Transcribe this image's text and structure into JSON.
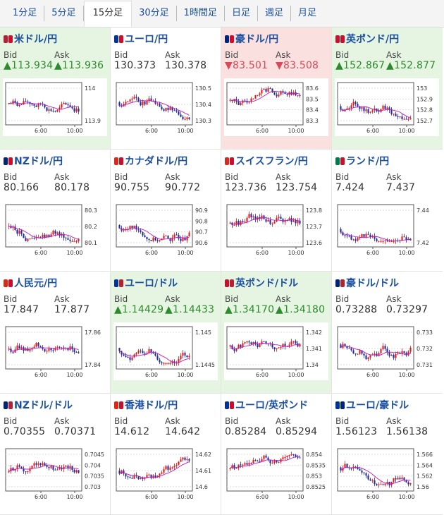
{
  "tabs": [
    {
      "label": "1分足",
      "active": false
    },
    {
      "label": "5分足",
      "active": false
    },
    {
      "label": "15分足",
      "active": true
    },
    {
      "label": "30分足",
      "active": false
    },
    {
      "label": "1時間足",
      "active": false
    },
    {
      "label": "日足",
      "active": false
    },
    {
      "label": "週足",
      "active": false
    },
    {
      "label": "月足",
      "active": false
    }
  ],
  "bid_label": "Bid",
  "ask_label": "Ask",
  "colors": {
    "up_bg": "#e6f5e2",
    "down_bg": "#fbe0e0",
    "candle_up": "#e01818",
    "candle_down": "#1f2aa0",
    "ma": "#c018c0",
    "up_text": "#2d8a2d",
    "down_text": "#d84a5a",
    "link": "#1a4fa0"
  },
  "x_ticks": [
    "6:00",
    "10:00"
  ],
  "pairs": [
    {
      "name": "米ドル/円",
      "flags": [
        "#b22234",
        "#c8102e"
      ],
      "state": "up",
      "bid": "▲113.934",
      "ask": "▲113.936",
      "y_ticks": [
        "114",
        "113.9"
      ]
    },
    {
      "name": "ユーロ/円",
      "flags": [
        "#003399",
        "#c8102e"
      ],
      "state": "none",
      "bid": "130.373",
      "ask": "130.378",
      "y_ticks": [
        "130.5",
        "130.4",
        "130.3"
      ]
    },
    {
      "name": "豪ドル/円",
      "flags": [
        "#00247d",
        "#c8102e"
      ],
      "state": "down",
      "bid": "▼83.501",
      "ask": "▼83.508",
      "y_ticks": [
        "83.6",
        "83.5",
        "83.4",
        "83.3"
      ]
    },
    {
      "name": "英ポンド/円",
      "flags": [
        "#c8102e",
        "#c8102e"
      ],
      "state": "up",
      "bid": "▲152.867",
      "ask": "▲152.877",
      "y_ticks": [
        "153",
        "152.9",
        "152.8",
        "152.7"
      ]
    },
    {
      "name": "NZドル/円",
      "flags": [
        "#00247d",
        "#c8102e"
      ],
      "state": "none",
      "bid": "80.166",
      "ask": "80.178",
      "y_ticks": [
        "80.3",
        "80.2",
        "80.1"
      ]
    },
    {
      "name": "カナダドル/円",
      "flags": [
        "#d52b1e",
        "#c8102e"
      ],
      "state": "none",
      "bid": "90.755",
      "ask": "90.772",
      "y_ticks": [
        "90.9",
        "90.8",
        "90.7",
        "90.6"
      ]
    },
    {
      "name": "スイスフラン/円",
      "flags": [
        "#d52b1e",
        "#c8102e"
      ],
      "state": "none",
      "bid": "123.736",
      "ask": "123.754",
      "y_ticks": [
        "123.8",
        "123.7",
        "123.6"
      ]
    },
    {
      "name": "ランド/円",
      "flags": [
        "#007a4d",
        "#c8102e"
      ],
      "state": "none",
      "bid": "7.424",
      "ask": "7.437",
      "y_ticks": [
        "7.44",
        "7.42"
      ]
    },
    {
      "name": "人民元/円",
      "flags": [
        "#de2910",
        "#c8102e"
      ],
      "state": "none",
      "bid": "17.847",
      "ask": "17.877",
      "y_ticks": [
        "17.86",
        "17.84"
      ]
    },
    {
      "name": "ユーロ/ドル",
      "flags": [
        "#003399",
        "#b22234"
      ],
      "state": "up",
      "bid": "▲1.14429",
      "ask": "▲1.14433",
      "y_ticks": [
        "1.145",
        "1.1445"
      ]
    },
    {
      "name": "英ポンド/ドル",
      "flags": [
        "#c8102e",
        "#b22234"
      ],
      "state": "up",
      "bid": "▲1.34170",
      "ask": "▲1.34180",
      "y_ticks": [
        "1.342",
        "1.341",
        "1.34"
      ]
    },
    {
      "name": "豪ドル/ドル",
      "flags": [
        "#00247d",
        "#b22234"
      ],
      "state": "none",
      "bid": "0.73288",
      "ask": "0.73297",
      "y_ticks": [
        "0.733",
        "0.732",
        "0.731"
      ]
    },
    {
      "name": "NZドル/ドル",
      "flags": [
        "#00247d",
        "#b22234"
      ],
      "state": "none",
      "bid": "0.70355",
      "ask": "0.70371",
      "y_ticks": [
        "0.7045",
        "0.704",
        "0.7035",
        "0.703"
      ]
    },
    {
      "name": "香港ドル/円",
      "flags": [
        "#de2910",
        "#c8102e"
      ],
      "state": "none",
      "bid": "14.612",
      "ask": "14.642",
      "y_ticks": [
        "14.62",
        "14.61",
        "14.6"
      ]
    },
    {
      "name": "ユーロ/英ポンド",
      "flags": [
        "#003399",
        "#c8102e"
      ],
      "state": "none",
      "bid": "0.85284",
      "ask": "0.85294",
      "y_ticks": [
        "0.854",
        "0.8535",
        "0.853",
        "0.8525"
      ]
    },
    {
      "name": "ユーロ/豪ドル",
      "flags": [
        "#003399",
        "#00247d"
      ],
      "state": "none",
      "bid": "1.56123",
      "ask": "1.56138",
      "y_ticks": [
        "1.566",
        "1.564",
        "1.562",
        "1.56"
      ]
    }
  ]
}
